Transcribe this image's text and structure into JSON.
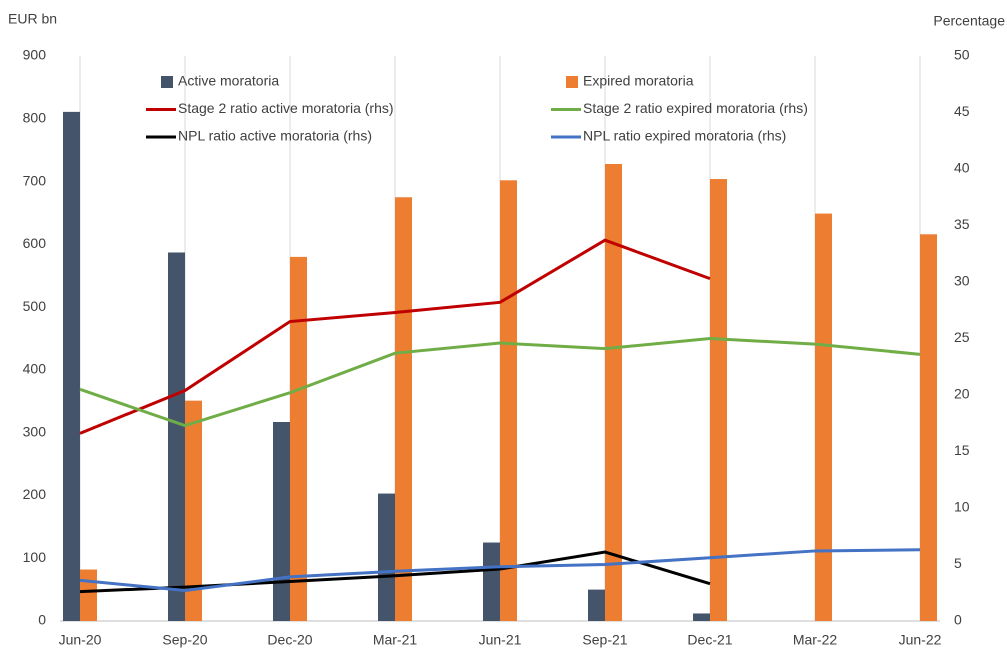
{
  "chart_data": {
    "type": "combo",
    "y_label": "EUR bn",
    "y2_label": "Percentage",
    "categories": [
      "Jun-20",
      "Sep-20",
      "Dec-20",
      "Mar-21",
      "Jun-21",
      "Sep-21",
      "Dec-21",
      "Mar-22",
      "Jun-22"
    ],
    "series": [
      {
        "name": "Active moratoria",
        "type": "bar",
        "color": "#44546a",
        "values": [
          811,
          587,
          317,
          203,
          125,
          50,
          12,
          null,
          null
        ]
      },
      {
        "name": "Expired moratoria",
        "type": "bar",
        "color": "#ed7d31",
        "values": [
          82,
          351,
          580,
          675,
          702,
          728,
          704,
          649,
          616
        ]
      },
      {
        "name": "Stage 2 ratio active moratoria (rhs)",
        "type": "line",
        "axis": "y2",
        "color": "#c00000",
        "values": [
          16.6,
          20.4,
          26.5,
          27.3,
          28.2,
          33.7,
          30.3,
          null,
          null
        ]
      },
      {
        "name": "Stage 2 ratio expired moratoria (rhs)",
        "type": "line",
        "axis": "y2",
        "color": "#70ad47",
        "values": [
          20.5,
          17.3,
          20.2,
          23.7,
          24.6,
          24.1,
          25.0,
          24.5,
          23.6
        ]
      },
      {
        "name": "NPL ratio active moratoria (rhs)",
        "type": "line",
        "axis": "y2",
        "color": "#000000",
        "values": [
          2.6,
          3.0,
          3.5,
          4.0,
          4.6,
          6.1,
          3.3,
          null,
          null
        ]
      },
      {
        "name": "NPL ratio expired moratoria (rhs)",
        "type": "line",
        "axis": "y2",
        "color": "#4472c4",
        "values": [
          3.6,
          2.7,
          3.9,
          4.4,
          4.8,
          5.0,
          5.6,
          6.2,
          6.3
        ]
      }
    ],
    "ylim": [
      0,
      900
    ],
    "yticks": [
      0,
      100,
      200,
      300,
      400,
      500,
      600,
      700,
      800,
      900
    ],
    "y2lim": [
      0,
      50
    ],
    "y2ticks": [
      0,
      5,
      10,
      15,
      20,
      25,
      30,
      35,
      40,
      45,
      50
    ],
    "grid": "x",
    "legend": "top"
  }
}
